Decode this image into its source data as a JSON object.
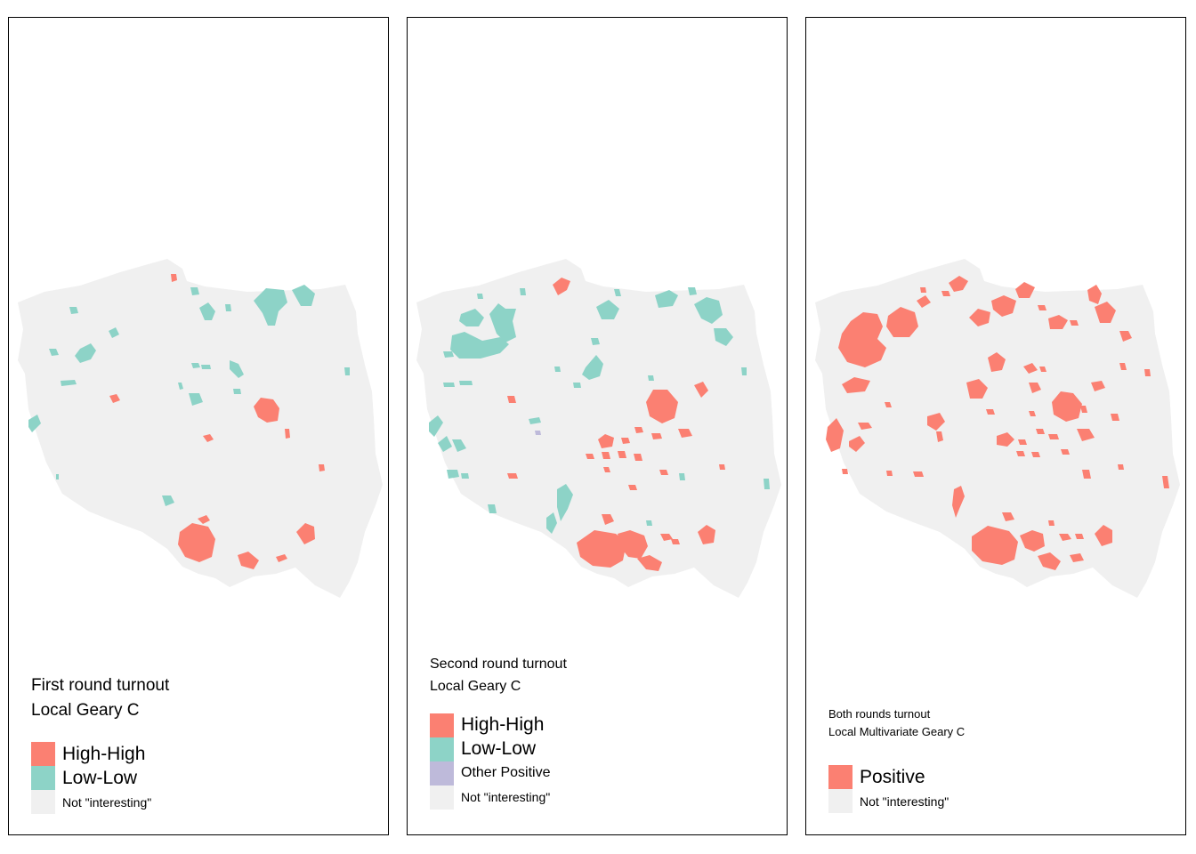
{
  "colors": {
    "high_high": "#fb8072",
    "low_low": "#8dd3c7",
    "other_positive": "#bebada",
    "positive": "#fb8072",
    "not_interesting": "#f0f0f0",
    "border": "#000000"
  },
  "panels": [
    {
      "title_line1": "First round turnout",
      "title_line2": "Local Geary C",
      "legend": [
        {
          "label": "High-High",
          "color": "#fb8072"
        },
        {
          "label": "Low-Low",
          "color": "#8dd3c7"
        },
        {
          "label": "Not \"interesting\"",
          "color": "#f0f0f0"
        }
      ]
    },
    {
      "title_line1": "Second round turnout",
      "title_line2": "Local Geary C",
      "legend": [
        {
          "label": "High-High",
          "color": "#fb8072"
        },
        {
          "label": "Low-Low",
          "color": "#8dd3c7"
        },
        {
          "label": "Other Positive",
          "color": "#bebada"
        },
        {
          "label": "Not \"interesting\"",
          "color": "#f0f0f0"
        }
      ]
    },
    {
      "title_line1": "Both rounds turnout",
      "title_line2": "Local Multivariate Geary C",
      "legend": [
        {
          "label": "Positive",
          "color": "#fb8072"
        },
        {
          "label": "Not \"interesting\"",
          "color": "#f0f0f0"
        }
      ]
    }
  ]
}
